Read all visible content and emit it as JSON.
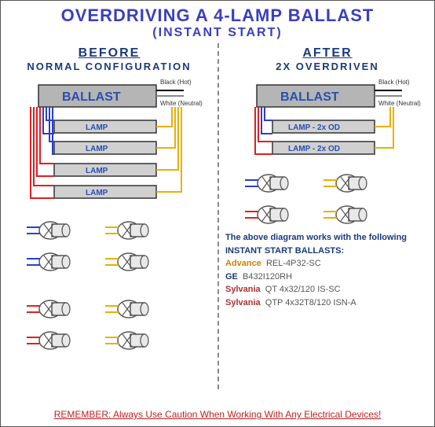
{
  "title_color": "#3a3fbf",
  "col_title_color": "#1a3a7a",
  "title": "OVERDRIVING A 4-LAMP BALLAST",
  "subtitle": "(INSTANT START)",
  "before": {
    "title": "BEFORE",
    "sub": "NORMAL CONFIGURATION"
  },
  "after": {
    "title": "AFTER",
    "sub": "2X OVERDRIVEN"
  },
  "ballast_label": "BALLAST",
  "lamp_label": "LAMP",
  "lamp_od_label": "LAMP - 2x OD",
  "wire_labels": {
    "hot": "Black (Hot)",
    "neutral": "White (Neutral)"
  },
  "colors": {
    "ballast_fill": "#b5b5b5",
    "ballast_text": "#2a4fb0",
    "lamp_fill": "#d0d0d0",
    "lamp_text": "#2a4fb0",
    "blue": "#2a3fd0",
    "red": "#e02020",
    "yellow": "#e8b000",
    "black": "#000000",
    "white_wire": "#888888",
    "socket_stroke": "#555555",
    "socket_fill": "#e8e8e8"
  },
  "info": {
    "header": "The above diagram works with the following INSTANT START BALLASTS:",
    "rows": [
      {
        "mfg": "Advance",
        "mfg_color": "#d08000",
        "model": "REL-4P32-SC"
      },
      {
        "mfg": "GE",
        "mfg_color": "#1a3a7a",
        "model": "B432I120RH"
      },
      {
        "mfg": "Sylvania",
        "mfg_color": "#b03030",
        "model": "QT 4x32/120 IS-SC"
      },
      {
        "mfg": "Sylvania",
        "mfg_color": "#b03030",
        "model": "QTP 4x32T8/120 ISN-A"
      }
    ]
  },
  "footer": "REMEMBER: Always Use Caution When Working With Any Electrical Devices!",
  "footer_color": "#c02020"
}
